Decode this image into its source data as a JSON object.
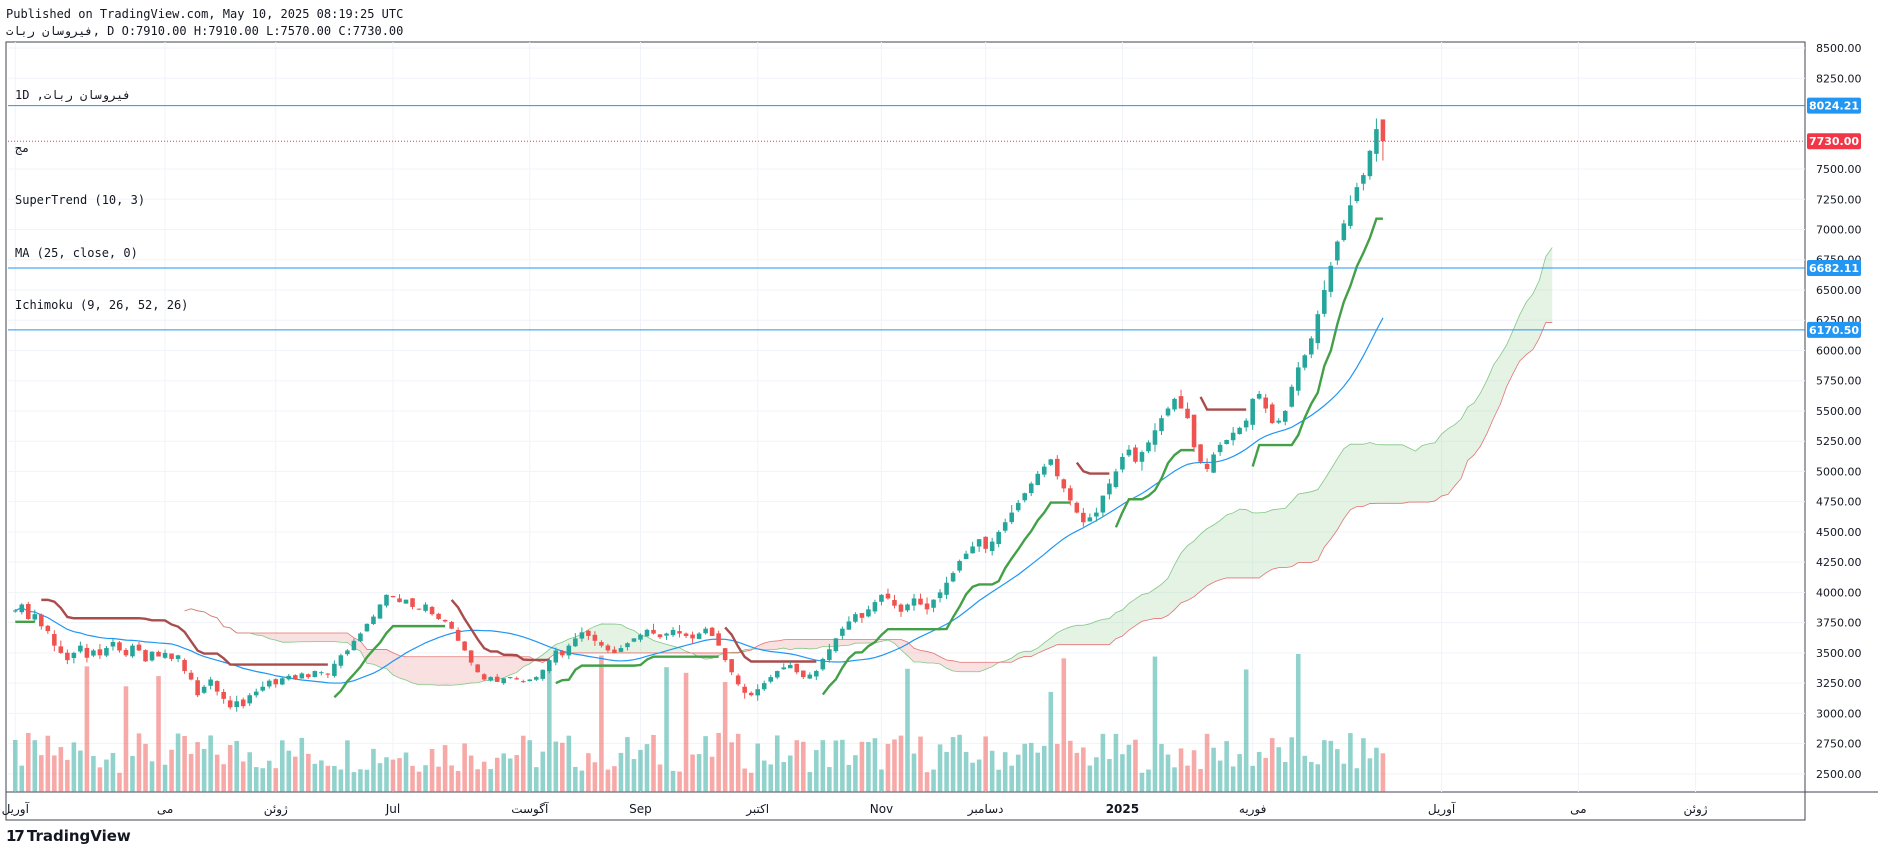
{
  "header": {
    "published": "Published on TradingView.com, May 10, 2025 08:19:25 UTC",
    "ohlc_line": "فیروسان ربات, D O:7910.00 H:7910.00 L:7570.00 C:7730.00"
  },
  "legend": {
    "symbol_line": "1D ,فیروسان ربات",
    "exchange": "مج",
    "indicators": [
      "SuperTrend (10, 3)",
      "MA (25, close, 0)",
      "Ichimoku (9, 26, 52, 26)"
    ]
  },
  "brand": {
    "mark": "17",
    "name": "TradingView"
  },
  "colors": {
    "up": "#26a69a",
    "down": "#ef5350",
    "supertrend_up": "#43a047",
    "supertrend_down": "#a84c4c",
    "ma": "#2196f3",
    "cloud_bull": "#a5d6a7",
    "cloud_bear": "#ef9a9a",
    "hline": "#2196f3",
    "last_price": "#f23645"
  },
  "chart_data": {
    "type": "candlestick",
    "timeframe": "1D",
    "y_axis": {
      "range": [
        2350,
        8550
      ],
      "ticks": [
        2500,
        2750,
        3000,
        3250,
        3500,
        3750,
        4000,
        4250,
        4500,
        4750,
        5000,
        5250,
        5500,
        5750,
        6000,
        6250,
        6500,
        6750,
        7000,
        7250,
        7500,
        8250,
        8500
      ],
      "tick_labels": [
        "2500.00",
        "2750.00",
        "3000.00",
        "3250.00",
        "3500.00",
        "3750.00",
        "4000.00",
        "4250.00",
        "4500.00",
        "4750.00",
        "5000.00",
        "5250.00",
        "5500.00",
        "5750.00",
        "6000.00",
        "6250.00",
        "6500.00",
        "6750.00",
        "7000.00",
        "7250.00",
        "7500.00",
        "8250.00",
        "8500.00"
      ]
    },
    "x_axis": {
      "tick_labels": [
        "آوریل",
        "می",
        "ژوئن",
        "Jul",
        "آگوست",
        "Sep",
        "اکتبر",
        "Nov",
        "دسامبر",
        "2025",
        "فوریه",
        "آوریل",
        "می",
        "ژوئن"
      ],
      "tick_index": [
        0,
        23,
        40,
        58,
        79,
        96,
        114,
        133,
        149,
        170,
        190,
        219,
        240,
        258
      ]
    },
    "horizontal_lines": [
      {
        "value": 8024.21,
        "label": "8024.21"
      },
      {
        "value": 6682.11,
        "label": "6682.11"
      },
      {
        "value": 6170.5,
        "label": "6170.50"
      }
    ],
    "last_price": {
      "value": 7730.0,
      "label": "7730.00"
    },
    "closes": [
      3850,
      3900,
      3780,
      3820,
      3720,
      3680,
      3560,
      3500,
      3440,
      3500,
      3560,
      3460,
      3520,
      3480,
      3540,
      3590,
      3520,
      3480,
      3560,
      3520,
      3430,
      3510,
      3470,
      3500,
      3450,
      3480,
      3350,
      3280,
      3150,
      3220,
      3280,
      3180,
      3120,
      3050,
      3100,
      3060,
      3150,
      3180,
      3220,
      3270,
      3240,
      3290,
      3310,
      3280,
      3330,
      3300,
      3350,
      3340,
      3320,
      3410,
      3480,
      3520,
      3600,
      3660,
      3740,
      3800,
      3900,
      3980,
      3960,
      3920,
      3940,
      3880,
      3860,
      3900,
      3820,
      3780,
      3760,
      3700,
      3600,
      3520,
      3420,
      3340,
      3280,
      3300,
      3260,
      3290,
      3300,
      3280,
      3260,
      3280,
      3300,
      3360,
      3440,
      3520,
      3480,
      3560,
      3620,
      3670,
      3640,
      3600,
      3560,
      3520,
      3500,
      3540,
      3580,
      3620,
      3650,
      3690,
      3660,
      3630,
      3660,
      3690,
      3660,
      3640,
      3620,
      3660,
      3700,
      3640,
      3560,
      3440,
      3340,
      3240,
      3170,
      3150,
      3200,
      3250,
      3300,
      3350,
      3380,
      3400,
      3340,
      3300,
      3320,
      3350,
      3450,
      3530,
      3620,
      3700,
      3760,
      3820,
      3790,
      3860,
      3920,
      3980,
      3950,
      3890,
      3840,
      3900,
      3950,
      3900,
      3860,
      3940,
      4000,
      4080,
      4160,
      4260,
      4320,
      4380,
      4440,
      4360,
      4420,
      4500,
      4580,
      4660,
      4740,
      4820,
      4900,
      4980,
      5040,
      5100,
      4960,
      4860,
      4760,
      4660,
      4580,
      4620,
      4660,
      4800,
      4900,
      5000,
      5120,
      5180,
      5080,
      5160,
      5240,
      5340,
      5440,
      5520,
      5600,
      5520,
      5440,
      5200,
      5080,
      5020,
      5140,
      5220,
      5260,
      5320,
      5360,
      5420,
      5600,
      5640,
      5520,
      5400,
      5420,
      5500,
      5700,
      5860,
      5960,
      6100,
      6300,
      6500,
      6700,
      6900,
      7050,
      7200,
      7350,
      7450,
      7650,
      7830,
      7730
    ]
  }
}
